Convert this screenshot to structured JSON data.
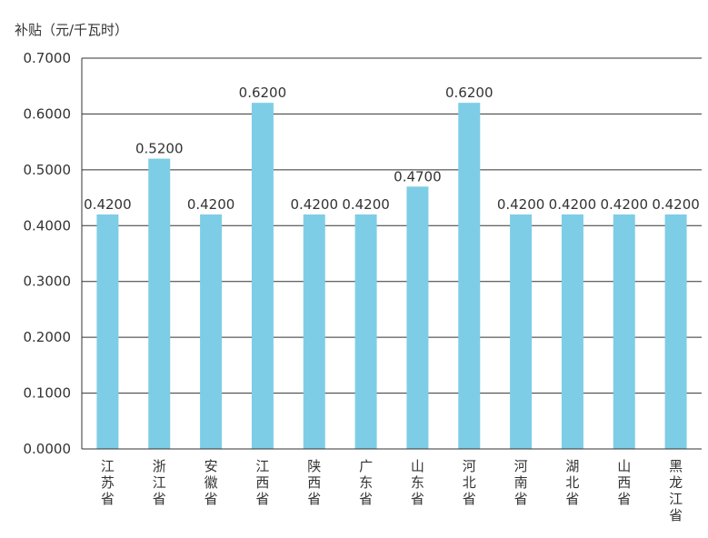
{
  "chart_data": {
    "type": "bar",
    "title": "",
    "xlabel": "",
    "ylabel": "补贴（元/千瓦时）",
    "ylim": [
      0,
      0.7
    ],
    "yticks": [
      "0.0000",
      "0.1000",
      "0.2000",
      "0.3000",
      "0.4000",
      "0.5000",
      "0.6000",
      "0.7000"
    ],
    "grid": true,
    "legend": "none",
    "bar_color": "#7ecde6",
    "categories": [
      "江苏省",
      "浙江省",
      "安徽省",
      "江西省",
      "陕西省",
      "广东省",
      "山东省",
      "河北省",
      "河南省",
      "湖北省",
      "山西省",
      "黑龙江省"
    ],
    "values": [
      0.42,
      0.52,
      0.42,
      0.62,
      0.42,
      0.42,
      0.47,
      0.62,
      0.42,
      0.42,
      0.42,
      0.42
    ],
    "value_labels": [
      "0.4200",
      "0.5200",
      "0.4200",
      "0.6200",
      "0.4200",
      "0.4200",
      "0.4700",
      "0.6200",
      "0.4200",
      "0.4200",
      "0.4200",
      "0.4200"
    ]
  }
}
